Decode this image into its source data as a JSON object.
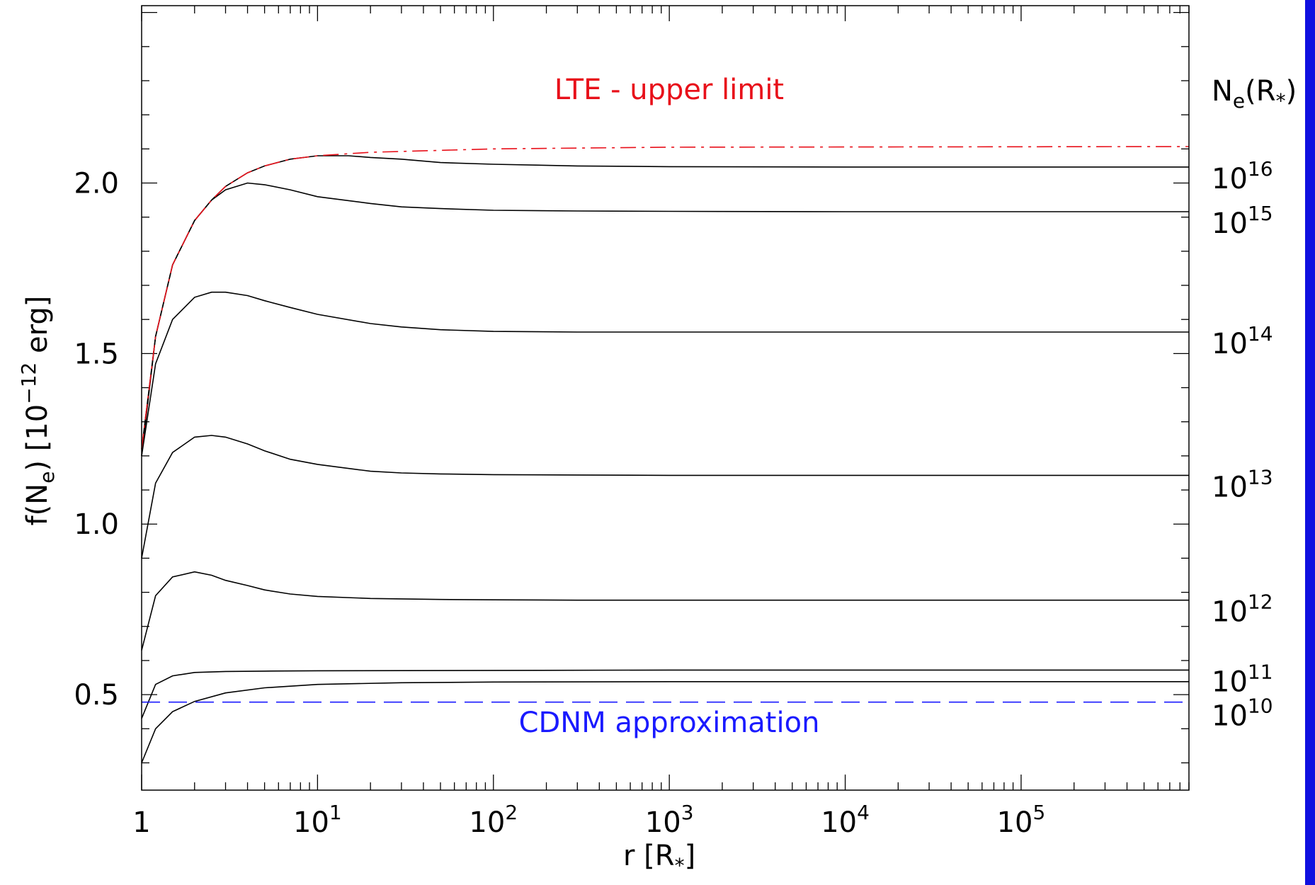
{
  "chart_data": {
    "type": "line",
    "xlabel_main": "r [R",
    "xlabel_sub": "*",
    "xlabel_close": "]",
    "ylabel_pre": "f(N",
    "ylabel_sub": "e",
    "ylabel_mid": ") [10",
    "ylabel_sup": "−12",
    "ylabel_post": " erg]",
    "x_scale": "log",
    "xlim": [
      1,
      900000
    ],
    "ylim": [
      0.22,
      2.52
    ],
    "x_ticks": [
      {
        "base": "1",
        "exp": ""
      },
      {
        "base": "10",
        "exp": "1"
      },
      {
        "base": "10",
        "exp": "2"
      },
      {
        "base": "10",
        "exp": "3"
      },
      {
        "base": "10",
        "exp": "4"
      },
      {
        "base": "10",
        "exp": "5"
      }
    ],
    "y_ticks": [
      "0.5",
      "1.0",
      "1.5",
      "2.0"
    ],
    "right_header_main": "N",
    "right_header_sub": "e",
    "right_header_open": "(R",
    "right_header_sub2": "*",
    "right_header_close": ")",
    "series": [
      {
        "label_base": "10",
        "label_exp": "16",
        "x": [
          1,
          1.2,
          1.5,
          2,
          2.5,
          3,
          4,
          5,
          7,
          10,
          15,
          20,
          30,
          50,
          100,
          300,
          1000,
          10000,
          900000
        ],
        "y": [
          1.22,
          1.55,
          1.76,
          1.89,
          1.95,
          1.99,
          2.03,
          2.05,
          2.07,
          2.08,
          2.08,
          2.075,
          2.07,
          2.06,
          2.055,
          2.05,
          2.048,
          2.047,
          2.047
        ]
      },
      {
        "label_base": "10",
        "label_exp": "15",
        "x": [
          1,
          1.2,
          1.5,
          2,
          2.5,
          3,
          4,
          5,
          7,
          10,
          20,
          30,
          50,
          100,
          300,
          1000,
          10000,
          900000
        ],
        "y": [
          1.2,
          1.55,
          1.76,
          1.89,
          1.95,
          1.98,
          2.0,
          1.995,
          1.98,
          1.96,
          1.94,
          1.93,
          1.925,
          1.92,
          1.918,
          1.917,
          1.916,
          1.916
        ]
      },
      {
        "label_base": "10",
        "label_exp": "14",
        "x": [
          1,
          1.2,
          1.5,
          2,
          2.5,
          3,
          4,
          5,
          7,
          10,
          20,
          30,
          50,
          100,
          300,
          1000,
          10000,
          900000
        ],
        "y": [
          1.2,
          1.47,
          1.6,
          1.665,
          1.68,
          1.68,
          1.67,
          1.655,
          1.635,
          1.615,
          1.588,
          1.578,
          1.57,
          1.565,
          1.563,
          1.563,
          1.563,
          1.563
        ]
      },
      {
        "label_base": "10",
        "label_exp": "13",
        "x": [
          1,
          1.2,
          1.5,
          2,
          2.5,
          3,
          4,
          5,
          7,
          10,
          20,
          30,
          50,
          100,
          300,
          1000,
          10000,
          900000
        ],
        "y": [
          0.9,
          1.12,
          1.21,
          1.255,
          1.26,
          1.255,
          1.235,
          1.215,
          1.19,
          1.175,
          1.155,
          1.15,
          1.147,
          1.145,
          1.144,
          1.143,
          1.143,
          1.143
        ]
      },
      {
        "label_base": "10",
        "label_exp": "12",
        "x": [
          1,
          1.2,
          1.5,
          2,
          2.5,
          3,
          4,
          5,
          7,
          10,
          20,
          50,
          100,
          300,
          1000,
          10000,
          900000
        ],
        "y": [
          0.63,
          0.79,
          0.845,
          0.86,
          0.85,
          0.835,
          0.82,
          0.807,
          0.795,
          0.788,
          0.782,
          0.779,
          0.778,
          0.777,
          0.777,
          0.777,
          0.777
        ]
      },
      {
        "label_base": "10",
        "label_exp": "11",
        "x": [
          1,
          1.2,
          1.5,
          2,
          3,
          5,
          10,
          100,
          1000,
          900000
        ],
        "y": [
          0.43,
          0.53,
          0.555,
          0.565,
          0.568,
          0.569,
          0.57,
          0.571,
          0.572,
          0.572
        ]
      },
      {
        "label_base": "10",
        "label_exp": "10",
        "x": [
          1,
          1.2,
          1.5,
          2,
          3,
          5,
          10,
          30,
          100,
          1000,
          900000
        ],
        "y": [
          0.3,
          0.4,
          0.45,
          0.48,
          0.505,
          0.52,
          0.53,
          0.535,
          0.537,
          0.538,
          0.538
        ]
      }
    ],
    "lte_limit": {
      "label": "LTE - upper limit",
      "color": "#e8101a",
      "x": [
        1,
        1.2,
        1.5,
        2,
        2.5,
        3,
        4,
        5,
        7,
        10,
        20,
        100,
        1000,
        900000
      ],
      "y": [
        1.22,
        1.55,
        1.76,
        1.89,
        1.95,
        1.99,
        2.03,
        2.05,
        2.07,
        2.08,
        2.09,
        2.1,
        2.105,
        2.107
      ]
    },
    "cdnm": {
      "label": "CDNM approximation",
      "color": "#1a1aff",
      "y": 0.478
    },
    "grid": false
  }
}
